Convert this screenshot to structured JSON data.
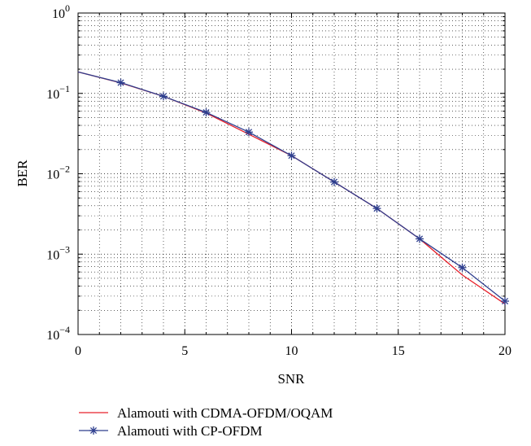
{
  "chart_data": {
    "type": "line",
    "title": "",
    "xlabel": "SNR",
    "ylabel": "BER",
    "xlim": [
      0,
      20
    ],
    "ylim": [
      0.0001,
      1
    ],
    "yscale": "log",
    "grid": true,
    "legend_position": "below",
    "x_ticks": [
      0,
      5,
      10,
      15,
      20
    ],
    "y_ticks": [
      {
        "value": 1,
        "base": "10",
        "exp": "0"
      },
      {
        "value": 0.1,
        "base": "10",
        "exp": "−1"
      },
      {
        "value": 0.01,
        "base": "10",
        "exp": "−2"
      },
      {
        "value": 0.001,
        "base": "10",
        "exp": "−3"
      },
      {
        "value": 0.0001,
        "base": "10",
        "exp": "−4"
      }
    ],
    "series": [
      {
        "name": "Alamouti with CDMA-OFDM/OQAM",
        "color": "#e8202a",
        "marker": "none",
        "x": [
          0,
          2,
          4,
          6,
          8,
          10,
          12,
          14,
          16,
          18,
          20
        ],
        "y": [
          0.185,
          0.135,
          0.092,
          0.057,
          0.031,
          0.0168,
          0.0079,
          0.0037,
          0.00155,
          0.00055,
          0.00024
        ]
      },
      {
        "name": "Alamouti with CP-OFDM",
        "color": "#2e3e8e",
        "marker": "star",
        "x": [
          0,
          2,
          4,
          6,
          8,
          10,
          12,
          14,
          16,
          18,
          20
        ],
        "y": [
          0.185,
          0.136,
          0.092,
          0.058,
          0.033,
          0.0168,
          0.0079,
          0.0037,
          0.00155,
          0.00068,
          0.00026
        ]
      }
    ]
  }
}
